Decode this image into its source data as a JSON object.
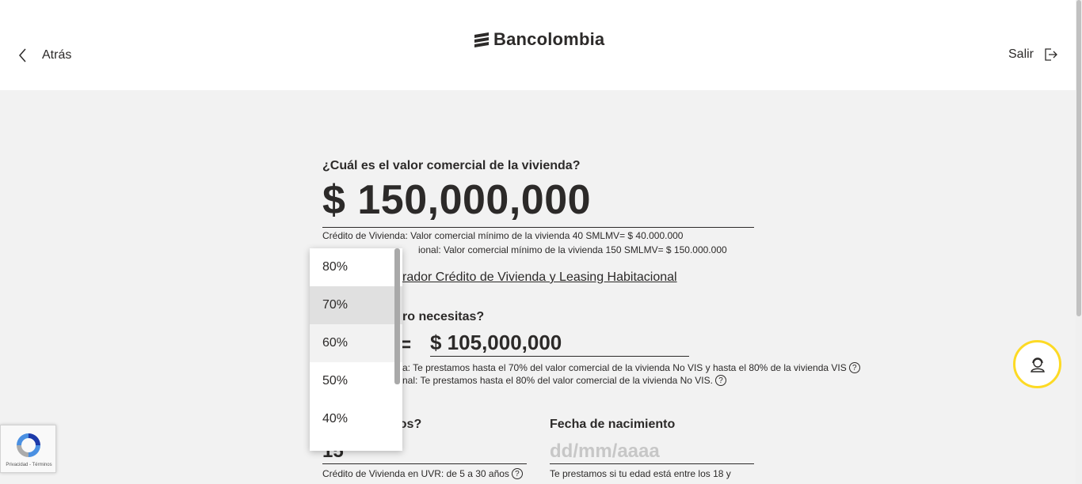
{
  "header": {
    "back_label": "Atrás",
    "brand_name": "Bancolombia",
    "logout_label": "Salir"
  },
  "form": {
    "commercial_value": {
      "question": "¿Cuál es el valor comercial de la vivienda?",
      "amount": "$ 150,000,000",
      "note_1": "Crédito de Vivienda: Valor comercial mínimo de la vivienda 40 SMLMV= $ 40.000.000",
      "note_2_visible": "ional: Valor comercial mínimo de la vivienda 150 SMLMV= $ 150.000.000"
    },
    "simulator_link_visible": "rador Crédito de Vivienda y Leasing Habitacional",
    "loan": {
      "question_visible": "ro necesitas?",
      "equals": "=",
      "amount": "$ 105,000,000",
      "note_1_visible": "a: Te prestamos hasta el 70% del valor comercial de la vivienda No VIS y hasta el 80% de la vivienda VIS",
      "note_2_visible": "nal: Te prestamos hasta el 80% del valor comercial de la vivienda No VIS.",
      "help_glyph": "?"
    },
    "term": {
      "question_visible": "ños?",
      "value_visible": "15",
      "note": "Crédito de Vivienda en UVR: de 5 a 30 años"
    },
    "birth_date": {
      "label": "Fecha de nacimiento",
      "placeholder": "dd/mm/aaaa",
      "note_visible": "Te prestamos si tu edad está entre los 18 y"
    }
  },
  "percentage_dropdown": {
    "options": [
      "80%",
      "70%",
      "60%",
      "50%",
      "40%"
    ],
    "selected": "70%",
    "hovered": "60%"
  },
  "recaptcha": {
    "footer": "Privacidad - Términos"
  },
  "colors": {
    "accent_yellow": "#fdda24",
    "text": "#2c2a29",
    "background": "#f2f2f2"
  },
  "icons": [
    "chevron-left-icon",
    "bancolombia-logo-icon",
    "logout-icon",
    "help-circle-icon",
    "support-agent-icon",
    "recaptcha-icon"
  ]
}
